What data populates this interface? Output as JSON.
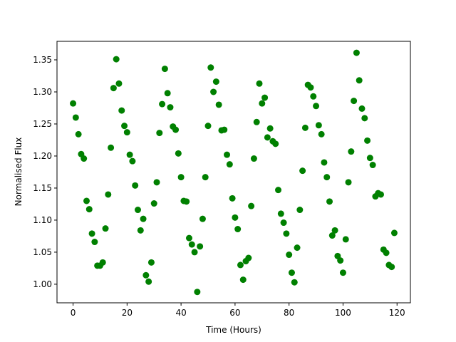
{
  "chart_data": {
    "type": "scatter",
    "x_label": "Time (Hours)",
    "y_label": "Normalised Flux",
    "color": "#008000",
    "x": [
      0,
      1,
      2,
      3,
      4,
      5,
      6,
      7,
      8,
      9,
      10,
      11,
      12,
      13,
      14,
      15,
      16,
      17,
      18,
      19,
      20,
      21,
      22,
      23,
      24,
      25,
      26,
      27,
      28,
      29,
      30,
      31,
      32,
      33,
      34,
      35,
      36,
      37,
      38,
      39,
      40,
      41,
      42,
      43,
      44,
      45,
      46,
      47,
      48,
      49,
      50,
      51,
      52,
      53,
      54,
      55,
      56,
      57,
      58,
      59,
      60,
      61,
      62,
      63,
      64,
      65,
      66,
      67,
      68,
      69,
      70,
      71,
      72,
      73,
      74,
      75,
      76,
      77,
      78,
      79,
      80,
      81,
      82,
      83,
      84,
      85,
      86,
      87,
      88,
      89,
      90,
      91,
      92,
      93,
      94,
      95,
      96,
      97,
      98,
      99,
      100,
      101,
      102,
      103,
      104,
      105,
      106,
      107,
      108,
      109,
      110,
      111,
      112,
      113,
      114,
      115,
      116,
      117,
      118,
      119
    ],
    "y": [
      1.282,
      1.26,
      1.234,
      1.203,
      1.196,
      1.13,
      1.117,
      1.079,
      1.066,
      1.029,
      1.029,
      1.034,
      1.087,
      1.14,
      1.213,
      1.306,
      1.351,
      1.313,
      1.271,
      1.247,
      1.237,
      1.202,
      1.192,
      1.154,
      1.116,
      1.084,
      1.102,
      1.014,
      1.004,
      1.034,
      1.126,
      1.159,
      1.236,
      1.281,
      1.336,
      1.298,
      1.276,
      1.246,
      1.241,
      1.204,
      1.167,
      1.13,
      1.129,
      1.072,
      1.062,
      1.05,
      0.988,
      1.059,
      1.102,
      1.167,
      1.247,
      1.338,
      1.3,
      1.316,
      1.28,
      1.24,
      1.241,
      1.202,
      1.187,
      1.134,
      1.104,
      1.086,
      1.03,
      1.007,
      1.036,
      1.041,
      1.122,
      1.196,
      1.253,
      1.313,
      1.282,
      1.291,
      1.229,
      1.243,
      1.223,
      1.219,
      1.147,
      1.11,
      1.096,
      1.079,
      1.046,
      1.018,
      1.003,
      1.057,
      1.116,
      1.177,
      1.244,
      1.311,
      1.307,
      1.293,
      1.278,
      1.248,
      1.234,
      1.19,
      1.167,
      1.129,
      1.076,
      1.084,
      1.044,
      1.037,
      1.018,
      1.07,
      1.159,
      1.207,
      1.286,
      1.361,
      1.318,
      1.274,
      1.259,
      1.224,
      1.197,
      1.186,
      1.137,
      1.142,
      1.14,
      1.054,
      1.049,
      1.03,
      1.027,
      1.08
    ],
    "xlim": [
      -5.95,
      124.95
    ],
    "xticks": [
      0,
      20,
      40,
      60,
      80,
      100,
      120
    ],
    "ylim": [
      0.971,
      1.3789
    ],
    "yticks": [
      {
        "value": 1,
        "label": "1.00"
      },
      1.05,
      {
        "value": 1.1,
        "label": "1.10"
      },
      1.15,
      {
        "value": 1.2,
        "label": "1.20"
      },
      1.25,
      {
        "value": 1.3,
        "label": "1.30"
      },
      1.35
    ]
  }
}
